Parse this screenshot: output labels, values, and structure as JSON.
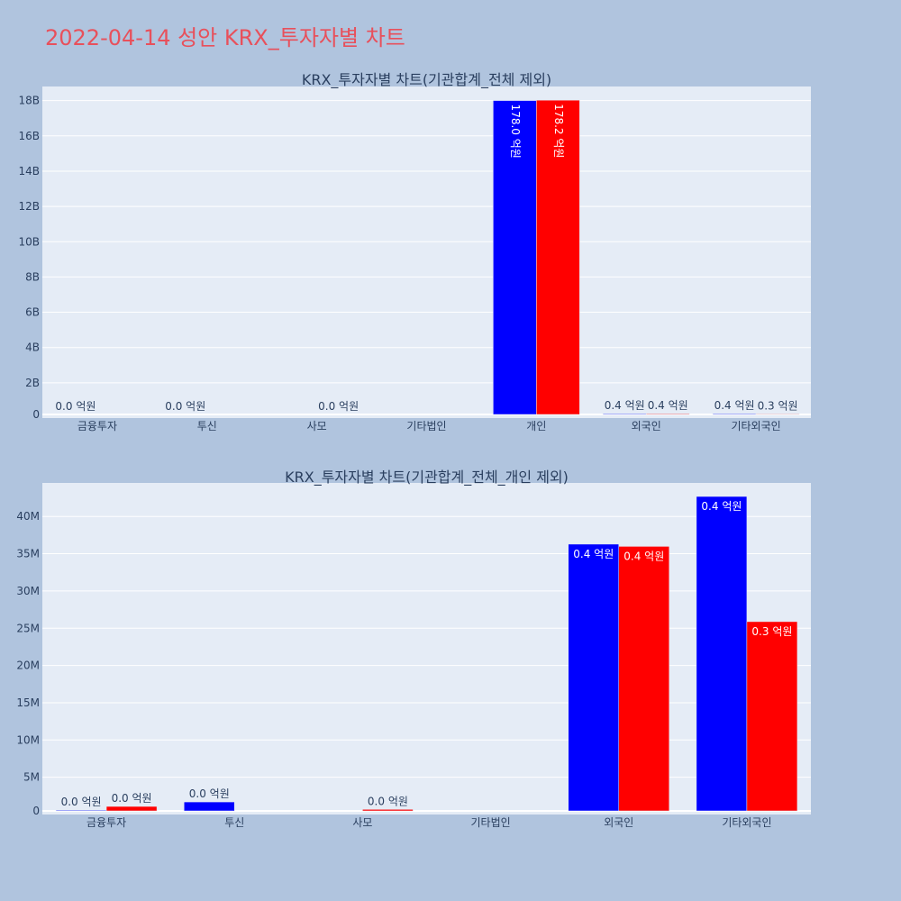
{
  "page_title": "2022-04-14 성안 KRX_투자자별 차트",
  "colors": {
    "series_a": "#0000ff",
    "series_b": "#ff0000",
    "title": "#e8505b"
  },
  "chart_data": [
    {
      "type": "bar",
      "title": "KRX_투자자별 차트(기관합계_전체 제외)",
      "categories": [
        "금융투자",
        "투신",
        "사모",
        "기타법인",
        "개인",
        "외국인",
        "기타외국인"
      ],
      "ylim": [
        0,
        18800000000
      ],
      "yticks": [
        0,
        2000000000,
        4000000000,
        6000000000,
        8000000000,
        10000000000,
        12000000000,
        14000000000,
        16000000000,
        18000000000
      ],
      "yticklabels": [
        "0",
        "2B",
        "4B",
        "6B",
        "8B",
        "10B",
        "12B",
        "14B",
        "16B",
        "18B"
      ],
      "grid": true,
      "series": [
        {
          "color": "#0000ff",
          "values": [
            0,
            0,
            0,
            0,
            17800000000,
            40000000,
            40000000
          ],
          "labels": [
            "0.0 억원",
            "0.0 억원",
            "",
            "",
            "178.0 억원",
            "0.4 억원",
            "0.4 억원"
          ]
        },
        {
          "color": "#ff0000",
          "values": [
            0,
            0,
            0,
            0,
            17820000000,
            40000000,
            30000000
          ],
          "labels": [
            "",
            "",
            "0.0 억원",
            "",
            "178.2 억원",
            "0.4 억원",
            "0.3 억원"
          ]
        }
      ]
    },
    {
      "type": "bar",
      "title": "KRX_투자자별 차트(기관합계_전체_개인 제외)",
      "categories": [
        "금융투자",
        "투신",
        "사모",
        "기타법인",
        "외국인",
        "기타외국인"
      ],
      "ylim": [
        0,
        44500000
      ],
      "yticks": [
        0,
        5000000,
        10000000,
        15000000,
        20000000,
        25000000,
        30000000,
        35000000,
        40000000
      ],
      "yticklabels": [
        "0",
        "5M",
        "10M",
        "15M",
        "20M",
        "25M",
        "30M",
        "35M",
        "40M"
      ],
      "grid": true,
      "series": [
        {
          "color": "#0000ff",
          "values": [
            100000,
            1200000,
            0,
            0,
            35800000,
            42200000
          ],
          "labels": [
            "0.0 억원",
            "0.0 억원",
            "",
            "",
            "0.4 억원",
            "0.4 억원"
          ]
        },
        {
          "color": "#ff0000",
          "values": [
            600000,
            0,
            200000,
            0,
            35500000,
            25400000
          ],
          "labels": [
            "0.0 억원",
            "",
            "0.0 억원",
            "",
            "0.4 억원",
            "0.3 억원"
          ]
        }
      ]
    }
  ]
}
